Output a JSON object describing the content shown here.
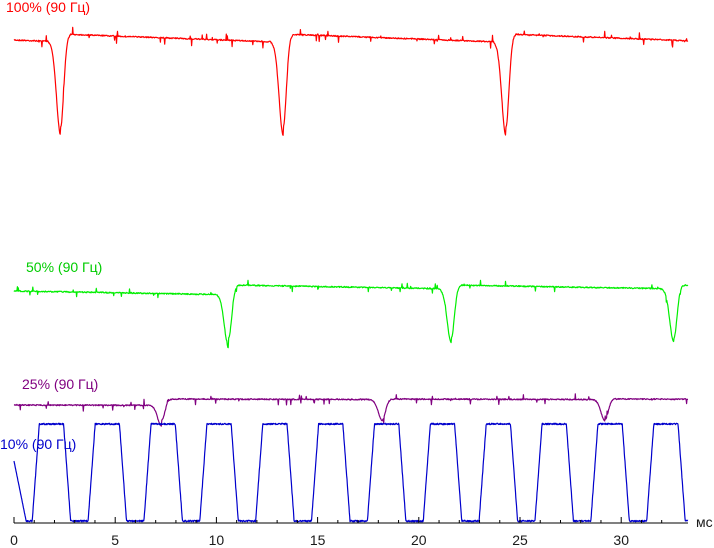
{
  "chart_data": {
    "type": "line",
    "x_unit": "мс",
    "xlim": [
      0,
      33.3
    ],
    "x_ticks": [
      0,
      5,
      10,
      15,
      20,
      25,
      30
    ],
    "series": [
      {
        "name": "100% (90 Гц)",
        "color": "#ff0000",
        "frame_period_ms": 11.1,
        "dip_times_ms": [
          2.3,
          13.3,
          24.3
        ],
        "dip_depth_fraction": 0.95
      },
      {
        "name": "50% (90 Гц)",
        "color": "#00ee00",
        "frame_period_ms": 11.1,
        "dip_times_ms": [
          10.6,
          21.6,
          32.6
        ],
        "dip_depth_fraction": 0.95
      },
      {
        "name": "25% (90 Гц)",
        "color": "#800080",
        "frame_period_ms": 11.1,
        "dip_times_ms": [
          7.3,
          18.2,
          29.2
        ],
        "dip_depth_fraction": 0.6
      },
      {
        "name": "10% (90 Гц)",
        "color": "#0000cc",
        "pulse_period_ms": 2.76,
        "on_start_ms": 0.9,
        "on_duration_ms": 1.2
      }
    ]
  }
}
